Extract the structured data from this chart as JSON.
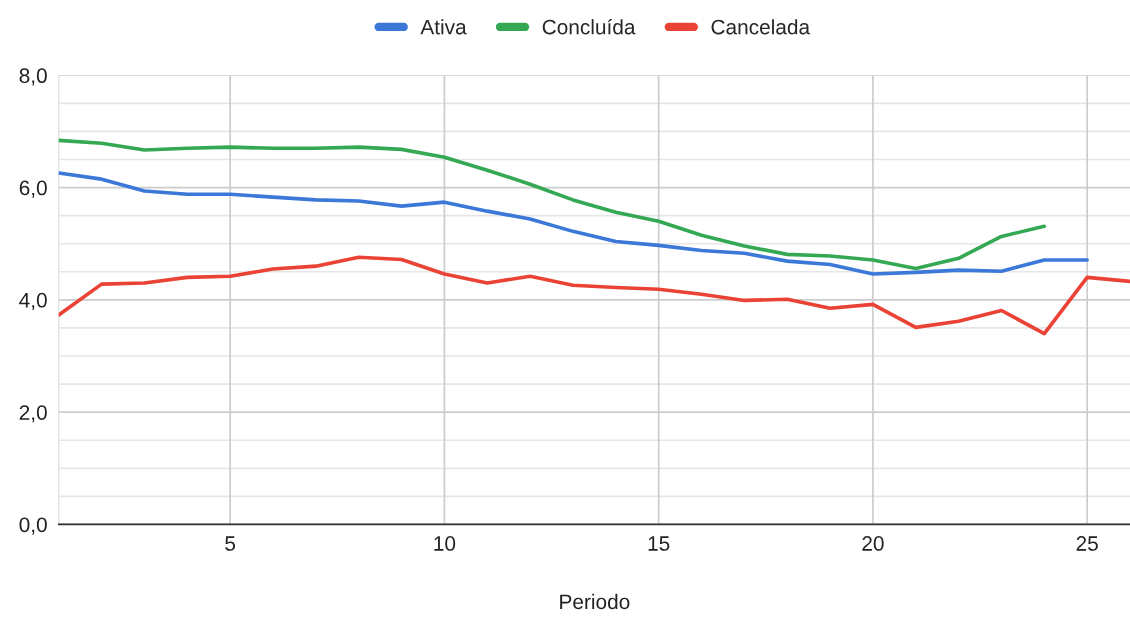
{
  "chart_data": {
    "type": "line",
    "xlabel": "Periodo",
    "x": [
      1,
      2,
      3,
      4,
      5,
      6,
      7,
      8,
      9,
      10,
      11,
      12,
      13,
      14,
      15,
      16,
      17,
      18,
      19,
      20,
      21,
      22,
      23,
      24,
      25,
      26
    ],
    "series": [
      {
        "name": "Ativa",
        "color": "#3c78d8",
        "values": [
          6.26,
          6.15,
          5.94,
          5.88,
          5.88,
          5.83,
          5.78,
          5.76,
          5.67,
          5.74,
          5.58,
          5.44,
          5.22,
          5.04,
          4.97,
          4.88,
          4.83,
          4.69,
          4.63,
          4.46,
          4.49,
          4.53,
          4.51,
          4.71,
          4.71,
          null
        ]
      },
      {
        "name": "Concluída",
        "color": "#34a853",
        "values": [
          6.84,
          6.79,
          6.67,
          6.7,
          6.72,
          6.7,
          6.7,
          6.72,
          6.68,
          6.54,
          6.31,
          6.06,
          5.78,
          5.56,
          5.4,
          5.15,
          4.96,
          4.81,
          4.78,
          4.71,
          4.56,
          4.74,
          5.13,
          5.31,
          null,
          null
        ]
      },
      {
        "name": "Cancelada",
        "color": "#ea4335",
        "values": [
          3.73,
          4.28,
          4.3,
          4.4,
          4.42,
          4.55,
          4.6,
          4.76,
          4.72,
          4.46,
          4.3,
          4.42,
          4.26,
          4.22,
          4.19,
          4.1,
          3.99,
          4.01,
          3.85,
          3.92,
          3.51,
          3.62,
          3.81,
          3.4,
          4.4,
          4.33
        ]
      }
    ],
    "xlim": [
      1,
      26
    ],
    "xticks": [
      5,
      10,
      15,
      20,
      25
    ],
    "ylim": [
      0,
      8
    ],
    "yticks": [
      {
        "value": 0,
        "label": "0,0"
      },
      {
        "value": 0.5,
        "label": null
      },
      {
        "value": 1,
        "label": null
      },
      {
        "value": 1.5,
        "label": null
      },
      {
        "value": 2,
        "label": "2,0"
      },
      {
        "value": 2.5,
        "label": null
      },
      {
        "value": 3,
        "label": null
      },
      {
        "value": 3.5,
        "label": null
      },
      {
        "value": 4,
        "label": "4,0"
      },
      {
        "value": 4.5,
        "label": null
      },
      {
        "value": 5,
        "label": null
      },
      {
        "value": 5.5,
        "label": null
      },
      {
        "value": 6,
        "label": "6,0"
      },
      {
        "value": 6.5,
        "label": null
      },
      {
        "value": 7,
        "label": null
      },
      {
        "value": 7.5,
        "label": null
      },
      {
        "value": 8,
        "label": "8,0"
      }
    ],
    "grid": true,
    "legend": "top",
    "line_style": "solid",
    "marker": "none"
  }
}
